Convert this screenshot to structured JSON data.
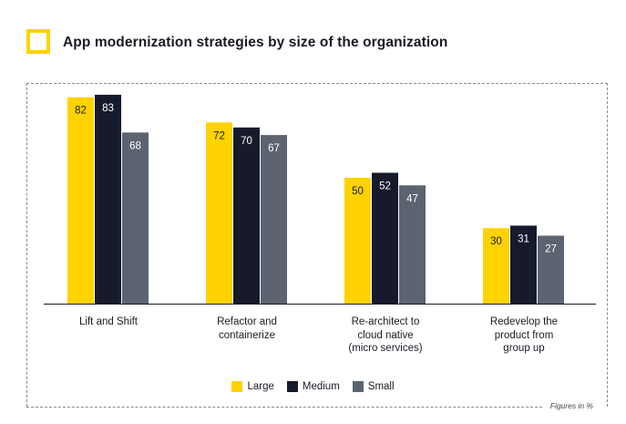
{
  "header": {
    "title": "App modernization strategies by size of the organization"
  },
  "footnote": "Figures in %",
  "chart_data": {
    "type": "bar",
    "title": "App modernization strategies by size of the organization",
    "xlabel": "",
    "ylabel": "",
    "ylim": [
      0,
      100
    ],
    "grid": false,
    "legend_position": "bottom",
    "categories": [
      "Lift and Shift",
      "Refactor and\ncontainerize",
      "Re-architect to\ncloud native\n(micro services)",
      "Redevelop the\nproduct from\ngroup up"
    ],
    "series": [
      {
        "name": "Large",
        "color": "#ffd200",
        "label_color": "#1a1a24",
        "values": [
          82,
          72,
          50,
          30
        ]
      },
      {
        "name": "Medium",
        "color": "#161a2c",
        "label_color": "#ffffff",
        "values": [
          83,
          70,
          52,
          31
        ]
      },
      {
        "name": "Small",
        "color": "#5b6470",
        "label_color": "#ffffff",
        "values": [
          68,
          67,
          47,
          27
        ]
      }
    ]
  }
}
